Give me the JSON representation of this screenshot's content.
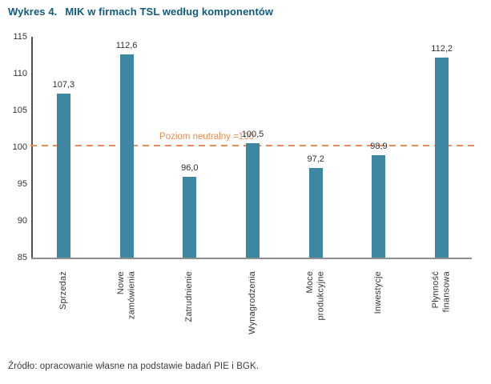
{
  "title": {
    "prefix": "Wykres 4.",
    "text": "MIK w firmach TSL według komponentów"
  },
  "source": "Źródło: opracowanie własne na podstawie badań PIE i BGK.",
  "colors": {
    "title": "#115A7E",
    "bar": "#3E87A3",
    "reference": "#F08B53",
    "tick_text": "#32333C",
    "y_axis_line": "#4E4E57",
    "x_axis_line": "#8F8F8F"
  },
  "chart_data": {
    "type": "bar",
    "title": "MIK w firmach TSL według komponentów",
    "categories": [
      "Sprzedaż",
      "Nowe\nzamówienia",
      "Zatrudnienie",
      "Wynagrodzenia",
      "Moce\nprodukcyjne",
      "Inwestycje",
      "Płynność\nfinansowa"
    ],
    "values": [
      107.3,
      112.6,
      96.0,
      100.5,
      97.2,
      98.9,
      112.2
    ],
    "value_labels": [
      "107,3",
      "112,6",
      "96,0",
      "100,5",
      "97,2",
      "98,9",
      "112,2"
    ],
    "xlabel": "",
    "ylabel": "",
    "ylim": [
      85,
      115
    ],
    "yticks": [
      85,
      90,
      95,
      100,
      105,
      110,
      115
    ],
    "grid": false,
    "legend_position": "none",
    "bar_color": "#3E87A3",
    "reference_line": {
      "value": 100,
      "label": "Poziom neutralny =100",
      "color": "#F08B53",
      "style": "dashed"
    }
  }
}
